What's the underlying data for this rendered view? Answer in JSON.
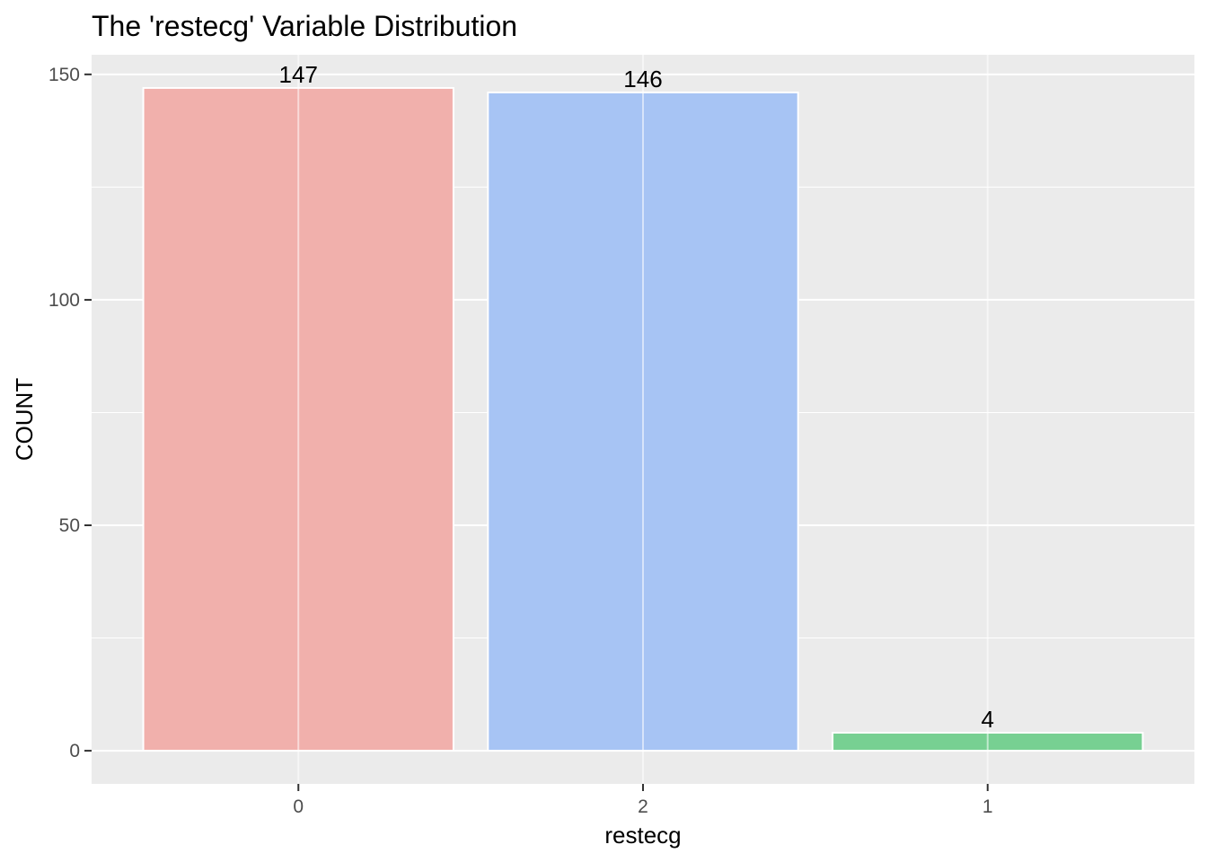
{
  "chart_data": {
    "type": "bar",
    "title": "The 'restecg' Variable Distribution",
    "xlabel": "restecg",
    "ylabel": "COUNT",
    "categories": [
      "0",
      "2",
      "1"
    ],
    "values": [
      147,
      146,
      4
    ],
    "data_labels": [
      "147",
      "146",
      "4"
    ],
    "y_ticks": [
      0,
      50,
      100,
      150
    ],
    "y_tick_labels": [
      "0",
      "50",
      "100",
      "150"
    ],
    "ylim": [
      -7.35,
      154.35
    ],
    "grid": true,
    "legend": "none",
    "colors": {
      "panel_background": "#EBEBEB",
      "grid": "#FFFFFF",
      "bar_outline": "#FFFFFF",
      "bars": [
        "#F1B0AC",
        "#A7C4F4",
        "#77D092"
      ]
    }
  }
}
